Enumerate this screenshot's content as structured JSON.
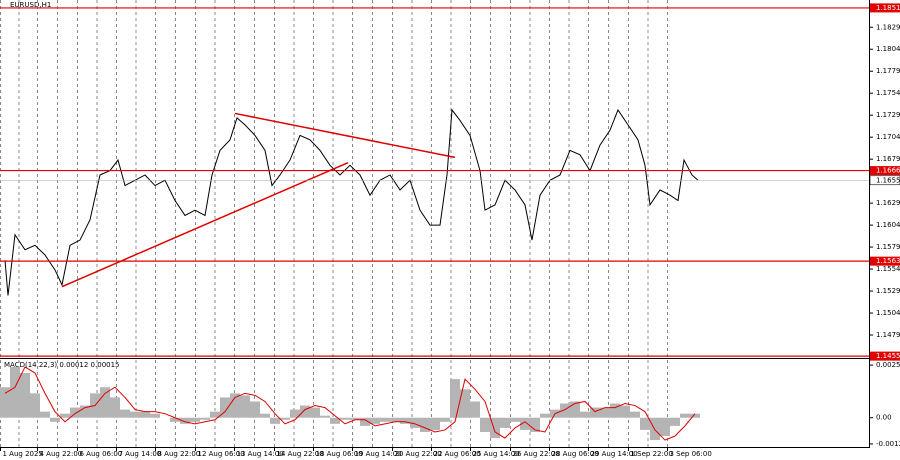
{
  "chart_data": [
    {
      "type": "line",
      "title": "EURUSD,H1",
      "color": "#000000",
      "x": [
        5,
        8,
        15,
        25,
        35,
        45,
        55,
        62,
        70,
        80,
        90,
        100,
        110,
        118,
        125,
        135,
        145,
        155,
        165,
        175,
        185,
        195,
        205,
        212,
        220,
        230,
        237,
        245,
        255,
        265,
        272,
        280,
        290,
        300,
        310,
        320,
        330,
        340,
        350,
        360,
        370,
        380,
        390,
        400,
        410,
        420,
        430,
        440,
        447,
        452,
        460,
        470,
        480,
        485,
        495,
        505,
        515,
        525,
        532,
        540,
        550,
        560,
        570,
        580,
        590,
        600,
        610,
        618,
        628,
        638,
        645,
        650,
        660,
        670,
        678,
        684,
        692,
        698
      ],
      "values": [
        1.1564,
        1.1524,
        1.1593,
        1.1576,
        1.1581,
        1.157,
        1.1553,
        1.1536,
        1.1581,
        1.1587,
        1.161,
        1.1661,
        1.1666,
        1.1678,
        1.1649,
        1.1655,
        1.1661,
        1.1649,
        1.1655,
        1.1632,
        1.1615,
        1.1621,
        1.1615,
        1.1661,
        1.1689,
        1.1701,
        1.1726,
        1.1718,
        1.1706,
        1.1689,
        1.1649,
        1.1661,
        1.1678,
        1.1706,
        1.1701,
        1.1689,
        1.1672,
        1.1661,
        1.1672,
        1.1661,
        1.1638,
        1.1655,
        1.1661,
        1.1644,
        1.1655,
        1.1621,
        1.1604,
        1.1604,
        1.1661,
        1.1735,
        1.1723,
        1.1706,
        1.1666,
        1.1621,
        1.1627,
        1.1655,
        1.1644,
        1.1627,
        1.1587,
        1.1638,
        1.1655,
        1.1661,
        1.1689,
        1.1684,
        1.1666,
        1.1695,
        1.1712,
        1.1735,
        1.1718,
        1.1701,
        1.1672,
        1.1627,
        1.1644,
        1.1638,
        1.1632,
        1.1678,
        1.1661,
        1.1655
      ],
      "xlim": [
        0,
        869
      ],
      "ylim": [
        1.1454,
        1.186
      ],
      "yticks": [
        1.1829,
        1.1804,
        1.1779,
        1.1754,
        1.1729,
        1.1704,
        1.1679,
        1.1629,
        1.1604,
        1.1579,
        1.1554,
        1.1529,
        1.1504,
        1.1479
      ],
      "xticks": [
        {
          "value": 0,
          "label": "1 Aug 2025"
        },
        {
          "value": 37,
          "label": "4 Aug 22:00"
        },
        {
          "value": 77,
          "label": "6 Aug 06:00"
        },
        {
          "value": 116,
          "label": "7 Aug 14:00"
        },
        {
          "value": 155,
          "label": "8 Aug 22:00"
        },
        {
          "value": 195,
          "label": "12 Aug 06:00"
        },
        {
          "value": 234,
          "label": "13 Aug 14:00"
        },
        {
          "value": 274,
          "label": "14 Aug 22:00"
        },
        {
          "value": 313,
          "label": "18 Aug 06:00"
        },
        {
          "value": 352,
          "label": "19 Aug 14:00"
        },
        {
          "value": 392,
          "label": "20 Aug 22:00"
        },
        {
          "value": 431,
          "label": "22 Aug 06:00"
        },
        {
          "value": 470,
          "label": "25 Aug 14:00"
        },
        {
          "value": 510,
          "label": "26 Aug 22:00"
        },
        {
          "value": 549,
          "label": "28 Aug 06:00"
        },
        {
          "value": 588,
          "label": "29 Aug 14:00"
        },
        {
          "value": 628,
          "label": "1 Sep 22:00"
        },
        {
          "value": 667,
          "label": "3 Sep 06:00"
        }
      ],
      "levels": [
        1.1851,
        1.1666,
        1.1563,
        1.1455
      ],
      "level_color": "#e00000",
      "trendlines": [
        {
          "x": [
            62,
            348
          ],
          "values": [
            1.1534,
            1.1675
          ]
        },
        {
          "x": [
            235,
            455
          ],
          "values": [
            1.1731,
            1.1681
          ]
        }
      ],
      "grid": true
    },
    {
      "type": "bar",
      "title": "MACD(14,22,3) 0.00012 0.00015",
      "x": [
        5,
        15,
        25,
        35,
        45,
        55,
        65,
        75,
        85,
        95,
        105,
        115,
        125,
        135,
        145,
        155,
        165,
        175,
        185,
        195,
        205,
        215,
        225,
        235,
        245,
        255,
        265,
        275,
        285,
        295,
        305,
        315,
        325,
        335,
        345,
        355,
        365,
        375,
        385,
        395,
        405,
        415,
        425,
        435,
        445,
        455,
        465,
        475,
        485,
        495,
        505,
        515,
        525,
        535,
        545,
        555,
        565,
        575,
        585,
        595,
        605,
        615,
        625,
        635,
        645,
        655,
        665,
        675,
        685,
        695
      ],
      "series": [
        {
          "color": "#b4b4b4",
          "values": [
            0.0015,
            0.0025,
            0.0022,
            0.0012,
            0.0003,
            -0.0002,
            0.0002,
            0.0005,
            0.0006,
            0.0012,
            0.0015,
            0.001,
            0.0004,
            0.0003,
            0.0003,
            0.0002,
            0,
            -0.0002,
            -0.0003,
            -0.0002,
            -0.0001,
            0.0003,
            0.001,
            0.0012,
            0.0011,
            0.0008,
            0.0002,
            -0.0003,
            -0.0001,
            0.0004,
            0.0006,
            0.0005,
            0.0001,
            -0.0003,
            -0.0001,
            -0.0001,
            -0.0004,
            -0.0003,
            -0.0002,
            -0.0002,
            -0.0003,
            -0.0005,
            -0.0007,
            -0.0006,
            -0.0002,
            0.0019,
            0.0014,
            0.0008,
            -0.0007,
            -0.001,
            -0.0005,
            -0.0002,
            -0.0006,
            -0.0007,
            0.0002,
            0.0004,
            0.0007,
            0.0008,
            0.0003,
            0.0005,
            0.0005,
            0.0007,
            0.0006,
            0.0003,
            -0.0006,
            -0.0011,
            -0.0009,
            -0.0004,
            0.0002,
            0.0002
          ]
        },
        {
          "color": "#e00000",
          "values": [
            0.0012,
            0.0015,
            0.0025,
            0.0022,
            0.0012,
            0.0003,
            -0.0002,
            0.0002,
            0.0005,
            0.0006,
            0.0012,
            0.0015,
            0.001,
            0.0004,
            0.0003,
            0.0003,
            0.0002,
            0,
            -0.0002,
            -0.0003,
            -0.0002,
            -0.0001,
            0.0003,
            0.001,
            0.0012,
            0.0011,
            0.0008,
            0.0002,
            -0.0003,
            -0.0001,
            0.0004,
            0.0006,
            0.0005,
            0.0001,
            -0.0003,
            -0.0001,
            -0.0001,
            -0.0004,
            -0.0003,
            -0.0002,
            -0.0002,
            -0.0003,
            -0.0005,
            -0.0007,
            -0.0006,
            -0.0002,
            0.0019,
            0.0014,
            0.0008,
            -0.0007,
            -0.001,
            -0.0005,
            -0.0002,
            -0.0006,
            -0.0007,
            0.0002,
            0.0004,
            0.0007,
            0.0008,
            0.0003,
            0.0005,
            0.0005,
            0.0007,
            0.0006,
            0.0003,
            -0.0006,
            -0.0011,
            -0.0009,
            -0.0004,
            0.0002
          ]
        }
      ],
      "ylim": [
        -0.00144,
        0.00289
      ],
      "yticks": [
        0.00259,
        {
          "value": 0,
          "label": "0.00"
        },
        -0.00129
      ]
    }
  ]
}
